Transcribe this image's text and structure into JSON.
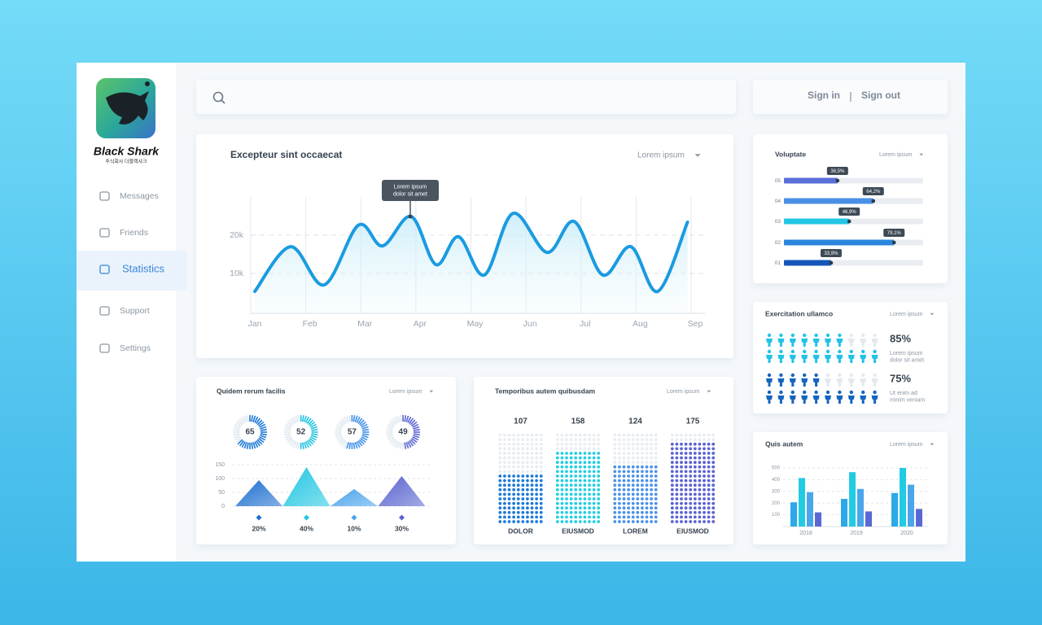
{
  "brand": {
    "name": "Black Shark",
    "tagline": "주식회사 더블랙샤크"
  },
  "nav": [
    {
      "label": "Messages"
    },
    {
      "label": "Friends"
    },
    {
      "label": "Statistics",
      "active": true
    },
    {
      "label": "Support"
    },
    {
      "label": "Settings"
    }
  ],
  "header": {
    "sign_in": "Sign in",
    "separator": "|",
    "sign_out": "Sign out"
  },
  "chart_data": [
    {
      "type": "line",
      "title": "Excepteur sint occaecat",
      "dropdown": "Lorem ipsum",
      "x": [
        0,
        0.65,
        1.26,
        1.88,
        2.32,
        2.84,
        3.29,
        3.7,
        4.17,
        4.69,
        5.31,
        5.8,
        6.32,
        6.83,
        7.32,
        7.86
      ],
      "series": [
        {
          "color": "#1a9be0",
          "values": [
            5300,
            17000,
            7000,
            22600,
            17200,
            24900,
            12300,
            19600,
            9600,
            25700,
            15500,
            23600,
            9600,
            17000,
            5300,
            23400
          ]
        }
      ],
      "xlim": [
        0,
        8
      ],
      "xticks": [
        {
          "value": 0,
          "label": "Jan"
        },
        {
          "value": 1,
          "label": "Feb"
        },
        {
          "value": 2,
          "label": "Mar"
        },
        {
          "value": 3,
          "label": "Apr"
        },
        {
          "value": 4,
          "label": "May"
        },
        {
          "value": 5,
          "label": "Jun"
        },
        {
          "value": 6,
          "label": "Jul"
        },
        {
          "value": 7,
          "label": "Aug"
        },
        {
          "value": 8,
          "label": "Sep"
        }
      ],
      "ylim": [
        0,
        30000
      ],
      "yticks": [
        {
          "value": 10000,
          "label": "10k"
        },
        {
          "value": 20000,
          "label": "20k"
        }
      ],
      "grid": true,
      "annotation": [
        "Lorem ipsum",
        "dolor sit amet"
      ]
    },
    {
      "type": "progress",
      "title": "Voluptate",
      "dropdown": "Lorem ipsum",
      "categories": [
        "05",
        "04",
        "03",
        "02",
        "01"
      ],
      "values": [
        38.5,
        64.2,
        46.9,
        79.1,
        33.9
      ],
      "value_labels": [
        "38,5%",
        "64,2%",
        "46,9%",
        "79,1%",
        "33,9%"
      ],
      "xlim": [
        0,
        100
      ],
      "colors": [
        "#5a6fd8",
        "#4a8fe6",
        "#22c6e4",
        "#2a86dc",
        "#1656b8"
      ]
    },
    {
      "type": "pictogram",
      "title": "Exercitation ullamco",
      "dropdown": "Lorem ipsum",
      "values": [
        85,
        75
      ],
      "value_labels": [
        "85%",
        "75%"
      ],
      "descriptions": [
        [
          "Lorem ipsum",
          "dolor sit amet"
        ],
        [
          "Ut enim ad",
          "minim veniam"
        ]
      ],
      "colors": [
        "#22c3e6",
        "#1565c0"
      ]
    },
    {
      "type": "bar",
      "title": "Quis autem",
      "dropdown": "Lorem ipsum",
      "categories": [
        "2018",
        "2019",
        "2020"
      ],
      "series": [
        {
          "color": "#2ba9e8",
          "values": [
            207,
            236,
            286
          ]
        },
        {
          "color": "#22cbe4",
          "values": [
            414,
            464,
            500
          ]
        },
        {
          "color": "#4aa6ea",
          "values": [
            293,
            321,
            357
          ]
        },
        {
          "color": "#5a68d4",
          "values": [
            121,
            129,
            150
          ]
        }
      ],
      "ylim": [
        0,
        500
      ],
      "yticks": [
        100,
        200,
        300,
        400,
        500
      ],
      "grid": true
    },
    {
      "type": "donut",
      "title": "Quidem rerum facilis",
      "dropdown": "Lorem ipsum",
      "values": [
        65,
        52,
        57,
        49
      ],
      "colors": [
        "#1e78d6",
        "#22c3e0",
        "#3f8fe6",
        "#5c66d2"
      ]
    },
    {
      "type": "triangle",
      "values": [
        94,
        141,
        62,
        109
      ],
      "ylim": [
        0,
        150
      ],
      "yticks": [
        0,
        50,
        100,
        150
      ],
      "grid": true,
      "markers": [
        {
          "value": 20,
          "label": "20%"
        },
        {
          "value": 40,
          "label": "40%"
        },
        {
          "value": 10,
          "label": "10%"
        },
        {
          "value": 30,
          "label": "30%"
        }
      ],
      "colors": [
        "#1e6fd0",
        "#22c6e2",
        "#4aa3ec",
        "#5a64d0"
      ]
    },
    {
      "type": "dots",
      "title": "Temporibus autem quibusdam",
      "dropdown": "Lorem ipsum",
      "categories": [
        "DOLOR",
        "EIUSMOD",
        "LOREM",
        "EIUSMOD"
      ],
      "values": [
        107,
        158,
        124,
        175
      ],
      "ylim": [
        0,
        200
      ],
      "colors": [
        "#1f7ad8",
        "#24cfe2",
        "#4b92e8",
        "#5b62d0"
      ]
    }
  ]
}
